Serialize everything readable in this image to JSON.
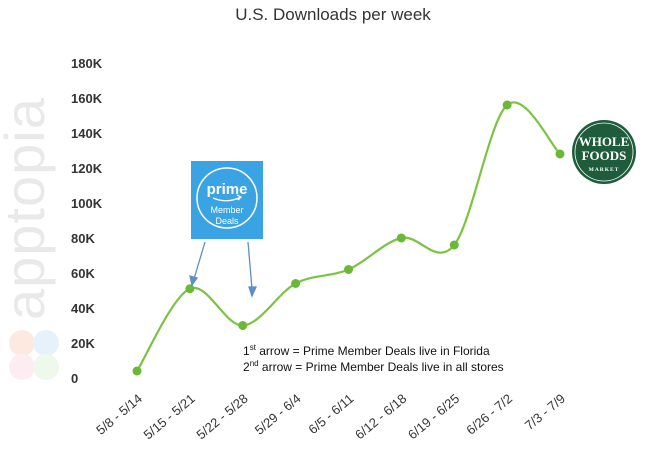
{
  "chart_data": {
    "type": "line",
    "title": "U.S. Downloads per week",
    "categories": [
      "5/8 - 5/14",
      "5/15 - 5/21",
      "5/22 - 5/28",
      "5/29 - 6/4",
      "6/5 - 6/11",
      "6/12 - 6/18",
      "6/19 - 6/25",
      "6/26 - 7/2",
      "7/3 - 7/9"
    ],
    "values": [
      4000,
      51000,
      30000,
      54000,
      62000,
      80000,
      76000,
      156000,
      128000
    ],
    "ylim": [
      0,
      180000
    ],
    "yticks": [
      0,
      20000,
      40000,
      60000,
      80000,
      100000,
      120000,
      140000,
      160000,
      180000
    ],
    "ytick_labels": [
      "0",
      "20K",
      "40K",
      "60K",
      "80K",
      "100K",
      "120K",
      "140K",
      "160K",
      "180K"
    ],
    "xlabel": "",
    "ylabel": "",
    "line_color": "#7cc243",
    "point_color": "#6ab838",
    "annotations": [
      {
        "sup": "st",
        "ordinal": "1",
        "text": " arrow = Prime Member Deals live in Florida"
      },
      {
        "sup": "nd",
        "ordinal": "2",
        "text": " arrow = Prime Member Deals live in all stores"
      }
    ]
  },
  "watermark": "apptopia",
  "prime_logo": {
    "line1": "prime",
    "line2": "Member",
    "line3": "Deals",
    "color": "#3aa3e3"
  },
  "wholefoods_logo": {
    "line1": "WHOLE",
    "line2": "FOODS",
    "line3": "MARKET",
    "color": "#1e5c3b"
  }
}
